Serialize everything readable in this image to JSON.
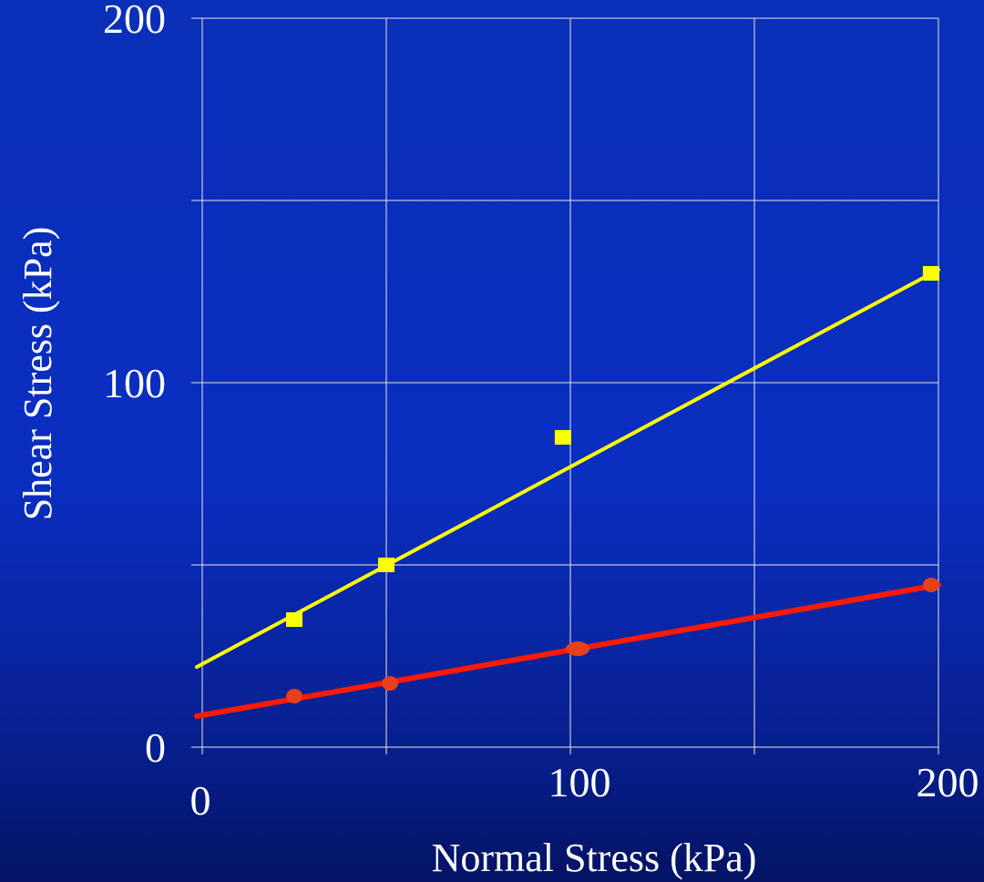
{
  "chart_data": {
    "type": "scatter",
    "xlabel": "Normal Stress (kPa)",
    "ylabel": "Shear Stress (kPa)",
    "xlim": [
      0,
      200
    ],
    "ylim": [
      0,
      200
    ],
    "x_ticks": [
      0,
      100,
      200
    ],
    "y_ticks": [
      0,
      100,
      200
    ],
    "grid": true,
    "gridlines_x": [
      0,
      50,
      100,
      150,
      200
    ],
    "gridlines_y": [
      0,
      50,
      100,
      150,
      200
    ],
    "series": [
      {
        "color": "#ffff00",
        "marker": "square",
        "points": [
          [
            25,
            35
          ],
          [
            50,
            50
          ],
          [
            98,
            85
          ],
          [
            198,
            130
          ]
        ],
        "fit_line": {
          "from": [
            0,
            22
          ],
          "to": [
            200,
            131
          ]
        }
      },
      {
        "color": "#ff1a00",
        "marker": "circle",
        "marker_color": "#e8401a",
        "points": [
          [
            25,
            14
          ],
          [
            51,
            17.5
          ],
          [
            102,
            27
          ],
          [
            198,
            44.5
          ]
        ],
        "fit_line": {
          "from": [
            0,
            8.5
          ],
          "to": [
            200,
            44.5
          ]
        }
      }
    ]
  }
}
